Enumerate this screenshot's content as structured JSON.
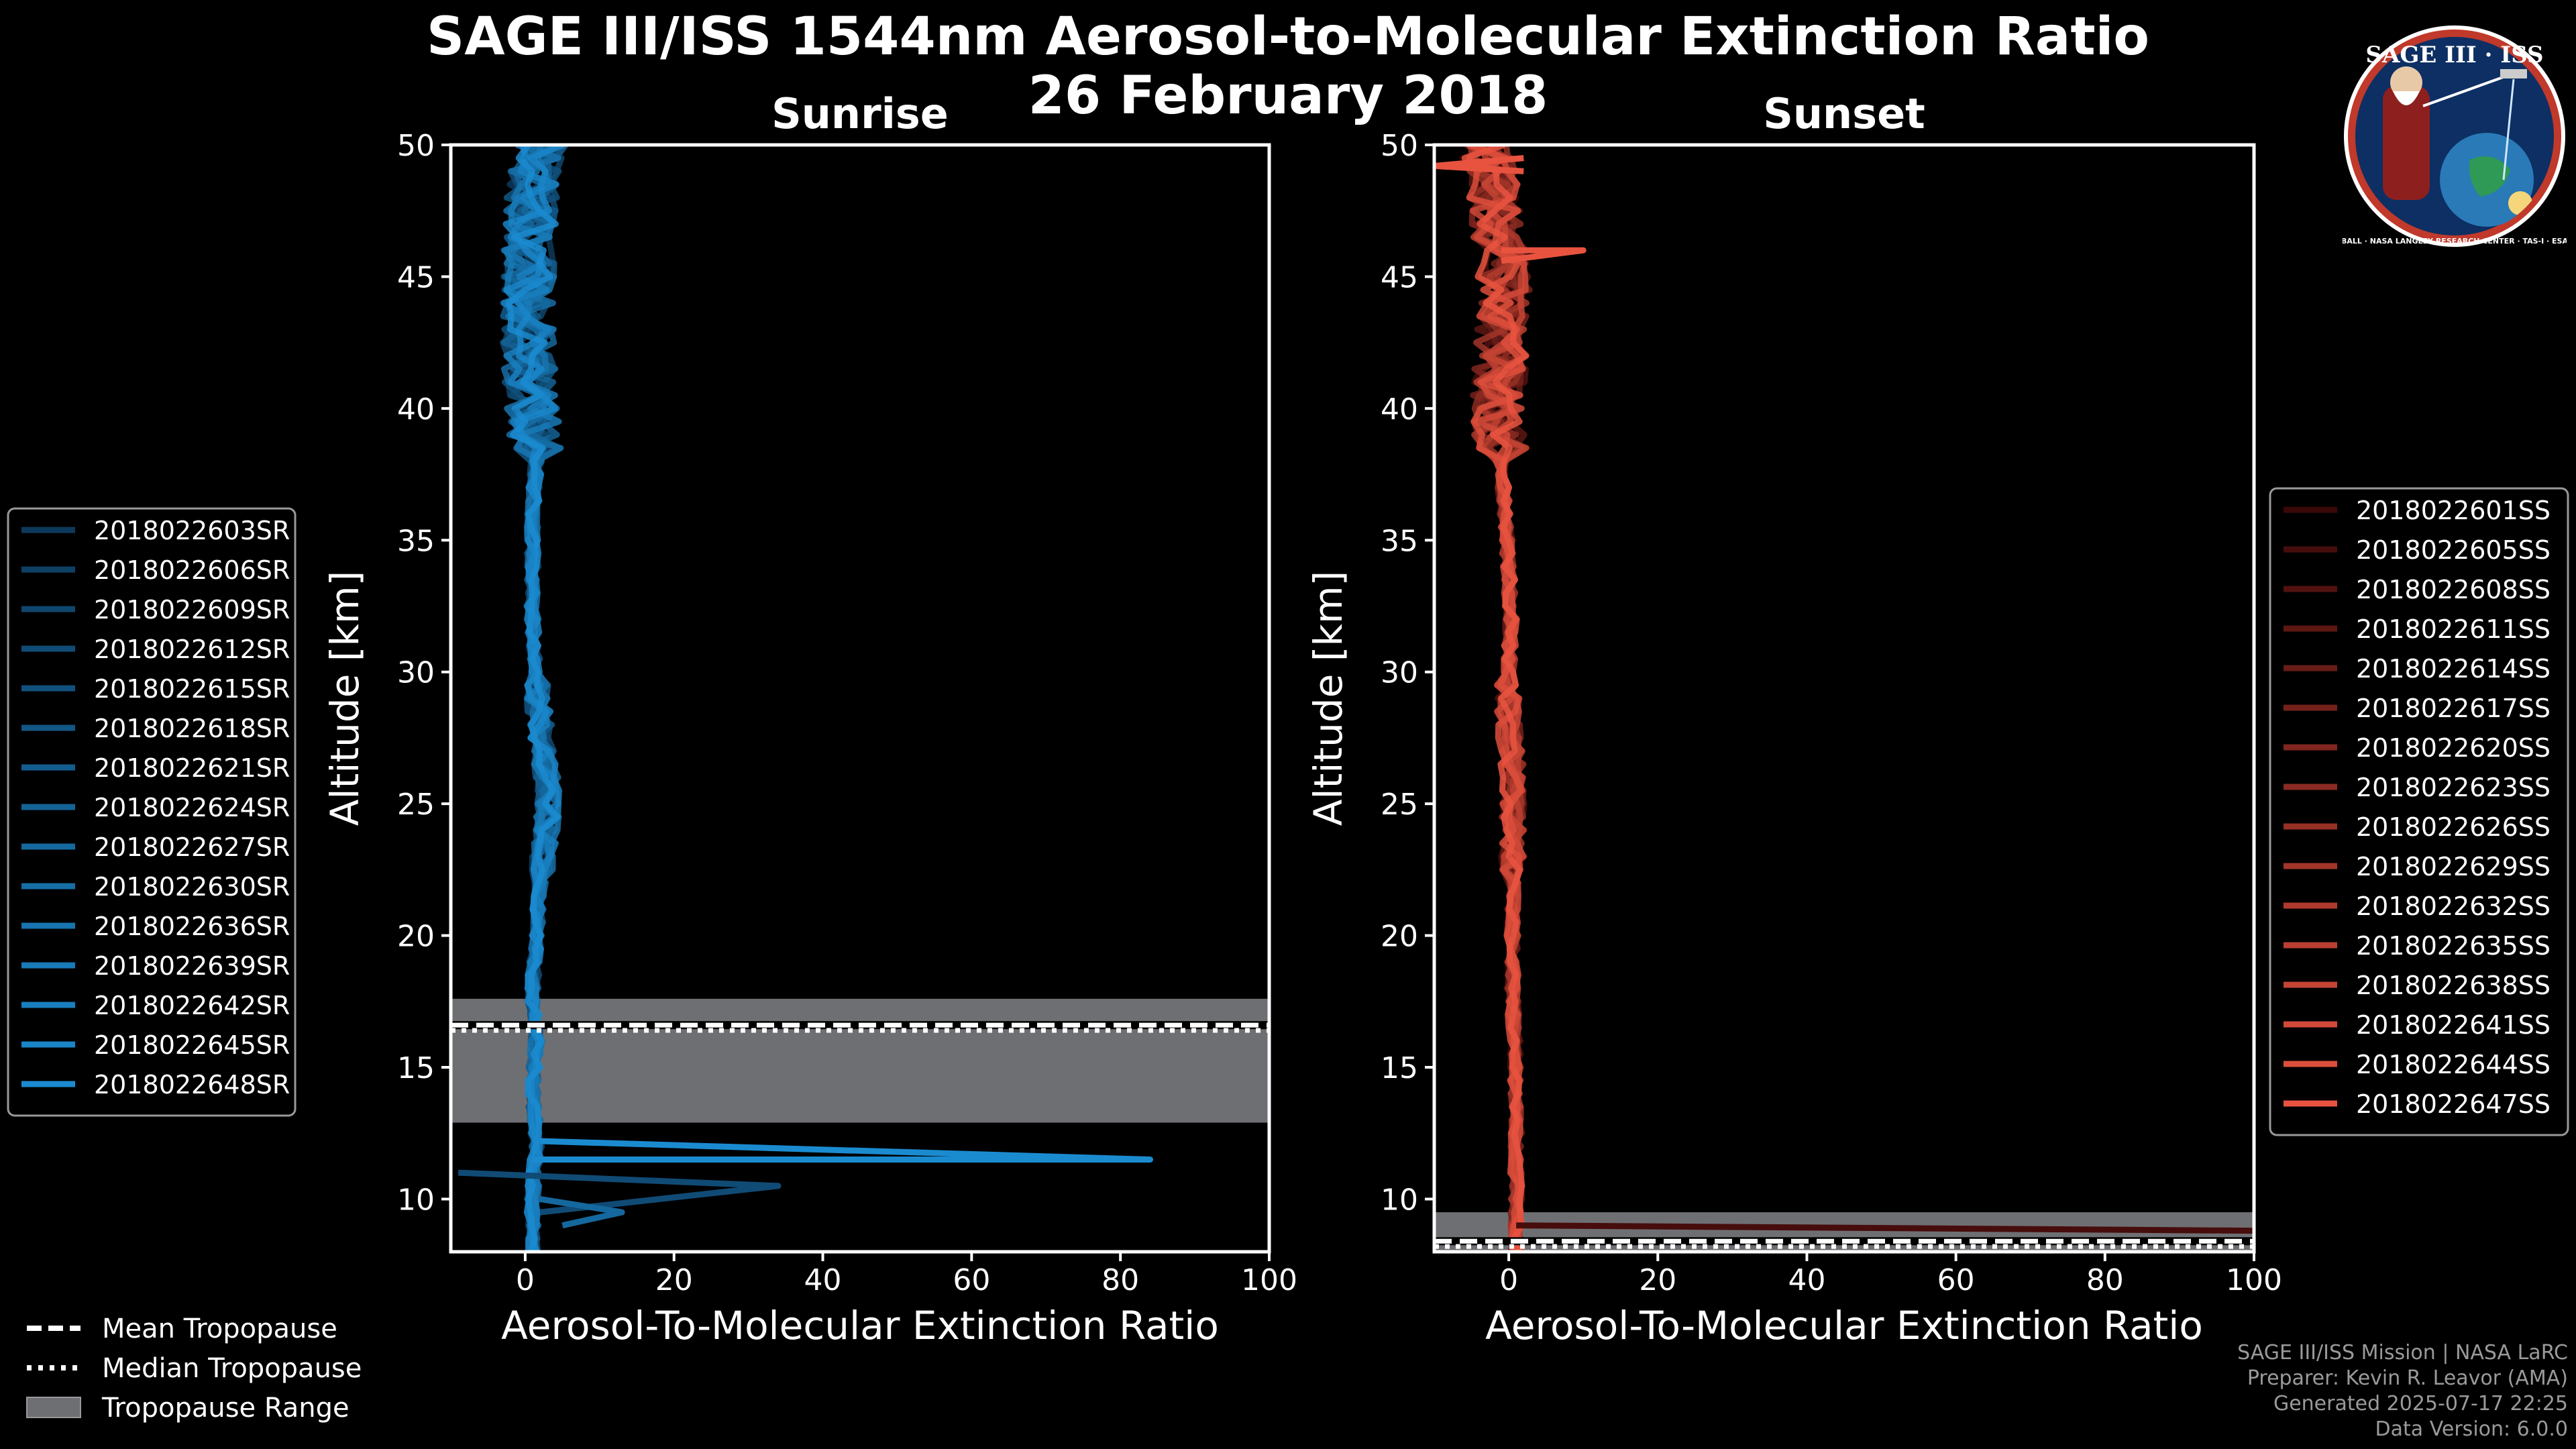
{
  "figure": {
    "title_line1": "SAGE III/ISS 1544nm Aerosol-to-Molecular Extinction Ratio",
    "title_line2": "26 February 2018",
    "colors": {
      "background": "#000000",
      "sunrise": "#1b8bd0",
      "sunset": "#e8533f",
      "tropopause_fill": "#6e6f73"
    }
  },
  "badge": {
    "title": "SAGE III · ISS",
    "text": "BALL · NASA LANGLEY RESEARCH CENTER · TAS-I · ESA"
  },
  "credits": {
    "line1": "SAGE III/ISS Mission | NASA LaRC",
    "line2": "Preparer: Kevin R. Leavor (AMA)",
    "line3": "Generated 2025-07-17 22:25",
    "line4": "Data Version: 6.0.0"
  },
  "tropopause_legend": [
    {
      "label": "Mean Tropopause",
      "style": "dashed"
    },
    {
      "label": "Median Tropopause",
      "style": "dotted"
    },
    {
      "label": "Tropopause Range",
      "style": "fill"
    }
  ],
  "chart_data": [
    {
      "type": "line",
      "panel": "sunrise",
      "title": "Sunrise",
      "xlabel": "Aerosol-To-Molecular Extinction Ratio",
      "ylabel": "Altitude [km]",
      "xlim": [
        -10,
        100
      ],
      "ylim": [
        8,
        50
      ],
      "xticks": [
        0,
        20,
        40,
        60,
        80,
        100
      ],
      "yticks": [
        10,
        15,
        20,
        25,
        30,
        35,
        40,
        45,
        50
      ],
      "tropopause": {
        "mean": 16.6,
        "median": 16.4,
        "min": 12.9,
        "max": 17.6
      },
      "series": [
        {
          "name": "2018022603SR"
        },
        {
          "name": "2018022606SR"
        },
        {
          "name": "2018022609SR"
        },
        {
          "name": "2018022612SR"
        },
        {
          "name": "2018022615SR"
        },
        {
          "name": "2018022618SR"
        },
        {
          "name": "2018022621SR"
        },
        {
          "name": "2018022624SR"
        },
        {
          "name": "2018022627SR"
        },
        {
          "name": "2018022630SR"
        },
        {
          "name": "2018022636SR"
        },
        {
          "name": "2018022639SR"
        },
        {
          "name": "2018022642SR"
        },
        {
          "name": "2018022645SR"
        },
        {
          "name": "2018022648SR"
        }
      ],
      "base_profile": [
        [
          1,
          8
        ],
        [
          1,
          10
        ],
        [
          1.5,
          12
        ],
        [
          1,
          14
        ],
        [
          1.5,
          16
        ],
        [
          1,
          18
        ],
        [
          1.5,
          20
        ],
        [
          2,
          22
        ],
        [
          3,
          24
        ],
        [
          3,
          26
        ],
        [
          2,
          28
        ],
        [
          1.5,
          30
        ],
        [
          1,
          32
        ],
        [
          1,
          34
        ],
        [
          1,
          36
        ],
        [
          1.5,
          38
        ],
        [
          1,
          40
        ],
        [
          0.5,
          42
        ],
        [
          0.5,
          44
        ],
        [
          0.5,
          46
        ],
        [
          1,
          48
        ],
        [
          2,
          50
        ]
      ],
      "spikes": [
        {
          "series": 14,
          "points": [
            [
              1,
              11.5
            ],
            [
              84,
              11.5
            ],
            [
              2,
              12.2
            ]
          ]
        },
        {
          "series": 3,
          "points": [
            [
              -9,
              11
            ],
            [
              34,
              10.5
            ],
            [
              2,
              9.5
            ]
          ]
        },
        {
          "series": 8,
          "points": [
            [
              2,
              10
            ],
            [
              13,
              9.5
            ],
            [
              5,
              9
            ]
          ]
        }
      ]
    },
    {
      "type": "line",
      "panel": "sunset",
      "title": "Sunset",
      "xlabel": "Aerosol-To-Molecular Extinction Ratio",
      "ylabel": "Altitude [km]",
      "xlim": [
        -10,
        100
      ],
      "ylim": [
        8,
        50
      ],
      "xticks": [
        0,
        20,
        40,
        60,
        80,
        100
      ],
      "yticks": [
        10,
        15,
        20,
        25,
        30,
        35,
        40,
        45,
        50
      ],
      "tropopause": {
        "mean": 8.4,
        "median": 8.2,
        "min": 8.0,
        "max": 9.5
      },
      "series": [
        {
          "name": "2018022601SS"
        },
        {
          "name": "2018022605SS"
        },
        {
          "name": "2018022608SS"
        },
        {
          "name": "2018022611SS"
        },
        {
          "name": "2018022614SS"
        },
        {
          "name": "2018022617SS"
        },
        {
          "name": "2018022620SS"
        },
        {
          "name": "2018022623SS"
        },
        {
          "name": "2018022626SS"
        },
        {
          "name": "2018022629SS"
        },
        {
          "name": "2018022632SS"
        },
        {
          "name": "2018022635SS"
        },
        {
          "name": "2018022638SS"
        },
        {
          "name": "2018022641SS"
        },
        {
          "name": "2018022644SS"
        },
        {
          "name": "2018022647SS"
        }
      ],
      "base_profile": [
        [
          1,
          8
        ],
        [
          1,
          10
        ],
        [
          1,
          12
        ],
        [
          1,
          14
        ],
        [
          0.8,
          16
        ],
        [
          0.5,
          18
        ],
        [
          0.5,
          20
        ],
        [
          0.5,
          22
        ],
        [
          0.5,
          24
        ],
        [
          0.5,
          26
        ],
        [
          0,
          28
        ],
        [
          0,
          30
        ],
        [
          0.3,
          32
        ],
        [
          0,
          34
        ],
        [
          -0.5,
          36
        ],
        [
          -1,
          38
        ],
        [
          -1.5,
          40
        ],
        [
          -1,
          42
        ],
        [
          -0.5,
          44
        ],
        [
          -1,
          46
        ],
        [
          -2,
          48
        ],
        [
          -3,
          50
        ]
      ],
      "spikes": [
        {
          "series": 1,
          "points": [
            [
              1,
              9
            ],
            [
              100,
              8.8
            ]
          ]
        },
        {
          "series": 15,
          "points": [
            [
              -1,
              46
            ],
            [
              10,
              46
            ],
            [
              -1,
              45.6
            ]
          ]
        },
        {
          "series": 15,
          "points": [
            [
              2,
              49
            ],
            [
              -10,
              49.2
            ],
            [
              2,
              49.5
            ]
          ]
        }
      ]
    }
  ]
}
